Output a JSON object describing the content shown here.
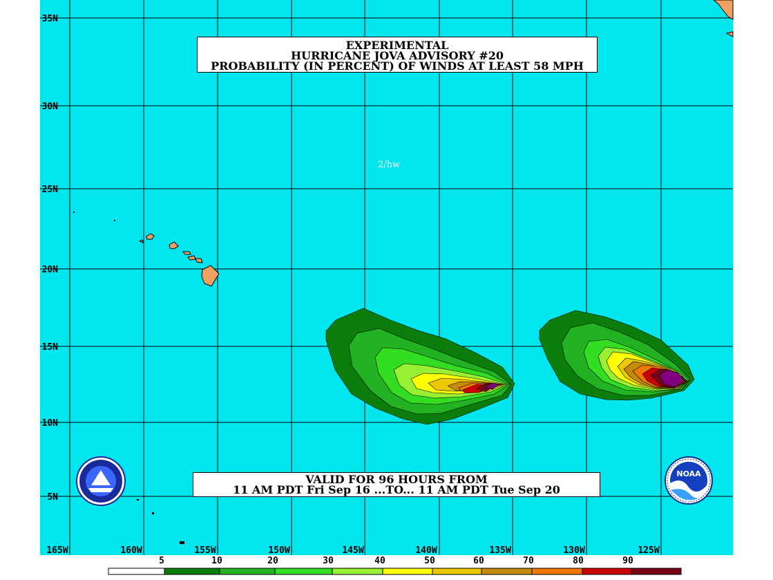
{
  "header": {
    "line1": "EXPERIMENTAL",
    "line2": "HURRICANE JOVA ADVISORY #20",
    "line3": "PROBABILITY (IN PERCENT) OF WINDS AT LEAST 58 MPH"
  },
  "footer": {
    "line1": "VALID FOR 96 HOURS FROM",
    "line2": "11 AM PDT Fri Sep 16 ...TO... 11 AM PDT Tue Sep 20"
  },
  "stamp": "2/hw",
  "latitude_labels": [
    "35N",
    "30N",
    "25N",
    "20N",
    "15N",
    "10N",
    "5N"
  ],
  "longitude_labels": [
    "165W",
    "160W",
    "155W",
    "150W",
    "145W",
    "140W",
    "135W",
    "130W",
    "125W"
  ],
  "scale": {
    "labels": [
      "5",
      "10",
      "20",
      "30",
      "40",
      "50",
      "60",
      "70",
      "80",
      "90"
    ],
    "colors": [
      "#ffffff",
      "#0a7d0a",
      "#22b222",
      "#33dd22",
      "#99f033",
      "#ffff00",
      "#ecc800",
      "#c68a0a",
      "#f07800",
      "#cc0000",
      "#7a0018",
      "#800080"
    ]
  },
  "colors": {
    "ocean": "#00e6ee",
    "land": "#f0a060",
    "grid": "#000000"
  },
  "logos": {
    "left": "NWS",
    "right": "NOAA"
  }
}
